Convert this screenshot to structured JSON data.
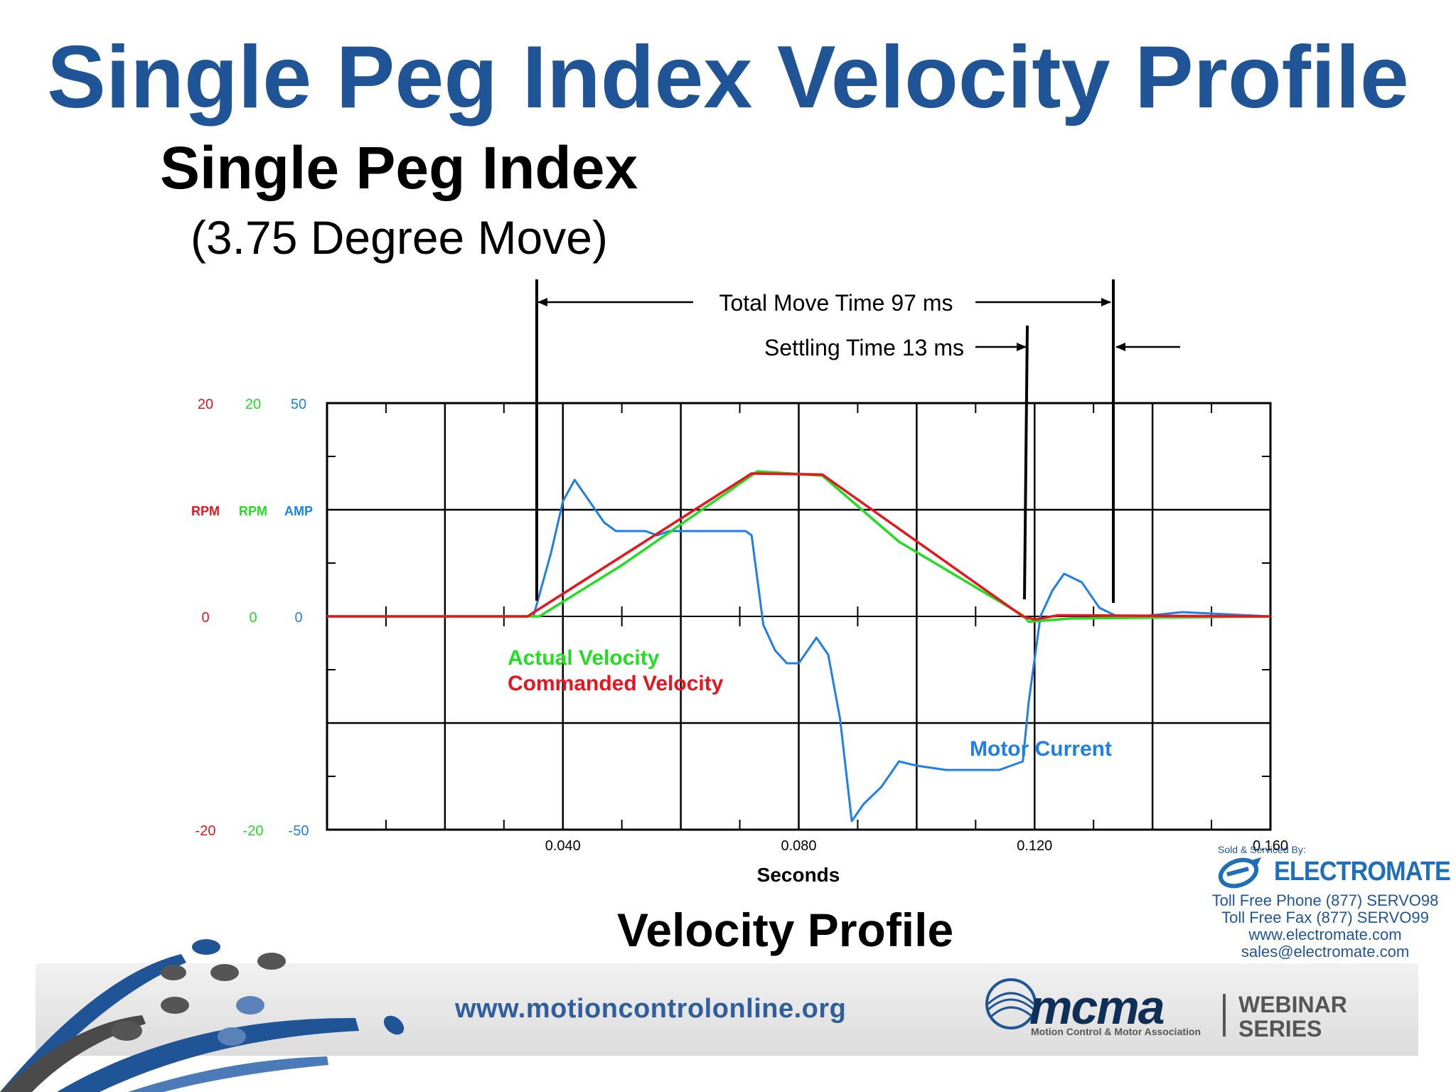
{
  "slide": {
    "title": "Single Peg Index Velocity Profile",
    "subtitle": "Single Peg Index",
    "subtitle_detail": "(3.75 Degree Move)",
    "caption": "Velocity Profile"
  },
  "annotations": {
    "total_move": "Total Move Time 97 ms",
    "settling": "Settling Time 13 ms"
  },
  "electromate": {
    "sold_by": "Sold & Serviced By:",
    "name": "ELECTROMATE",
    "phone": "Toll Free Phone  (877) SERVO98",
    "fax": "Toll Free Fax  (877) SERVO99",
    "web": "www.electromate.com",
    "email": "sales@electromate.com"
  },
  "footer": {
    "url": "www.motioncontrolonline.org",
    "org": "mcma",
    "org_full": "Motion Control & Motor Association",
    "webinar_1": "WEBINAR",
    "webinar_2": "SERIES"
  },
  "colors": {
    "title_blue": "#1f5597",
    "commanded": "#e8141e",
    "actual": "#22dd22",
    "current": "#1e7fe8"
  },
  "chart_data": {
    "type": "line",
    "xlabel": "Seconds",
    "xlim": [
      0.0,
      0.16
    ],
    "x_ticks": [
      "0.040",
      "0.080",
      "0.120",
      "0.160"
    ],
    "axes": [
      {
        "unit": "RPM",
        "color": "#e8141e",
        "ylim": [
          -20,
          20
        ],
        "tick_labels": [
          "20",
          "0",
          "-20"
        ]
      },
      {
        "unit": "RPM",
        "color": "#22dd22",
        "ylim": [
          -20,
          20
        ],
        "tick_labels": [
          "20",
          "0",
          "-20"
        ]
      },
      {
        "unit": "AMP",
        "color": "#1e7fe8",
        "ylim": [
          -50,
          50
        ],
        "tick_labels": [
          "50",
          "0",
          "-50"
        ]
      }
    ],
    "grid": true,
    "series": [
      {
        "name": "Commanded Velocity",
        "color": "#e8141e",
        "axis": 0,
        "x": [
          0.0,
          0.034,
          0.072,
          0.084,
          0.118,
          0.12,
          0.124,
          0.16
        ],
        "y": [
          0,
          0,
          13.4,
          13.3,
          0,
          -0.3,
          0.1,
          0
        ]
      },
      {
        "name": "Actual Velocity",
        "color": "#22dd22",
        "axis": 1,
        "x": [
          0.0,
          0.036,
          0.05,
          0.073,
          0.084,
          0.097,
          0.118,
          0.119,
          0.126,
          0.16
        ],
        "y": [
          0,
          0,
          4.8,
          13.6,
          13.2,
          7.0,
          0.1,
          -0.5,
          -0.2,
          0
        ]
      },
      {
        "name": "Motor Current",
        "color": "#1e7fe8",
        "axis": 2,
        "x": [
          0.0,
          0.035,
          0.038,
          0.04,
          0.042,
          0.044,
          0.047,
          0.049,
          0.051,
          0.054,
          0.056,
          0.058,
          0.061,
          0.064,
          0.068,
          0.071,
          0.072,
          0.074,
          0.076,
          0.078,
          0.08,
          0.083,
          0.085,
          0.087,
          0.089,
          0.091,
          0.094,
          0.097,
          0.1,
          0.105,
          0.11,
          0.114,
          0.118,
          0.119,
          0.121,
          0.123,
          0.125,
          0.128,
          0.131,
          0.134,
          0.138,
          0.145,
          0.16
        ],
        "y": [
          0,
          0,
          15,
          27,
          32,
          28,
          22,
          20,
          20,
          20,
          19,
          20,
          20,
          20,
          20,
          20,
          19,
          -2,
          -8,
          -11,
          -11,
          -5,
          -9,
          -24,
          -48,
          -44,
          -40,
          -34,
          -35,
          -36,
          -36,
          -36,
          -34,
          -20,
          0,
          6,
          10,
          8,
          2,
          0,
          0,
          1,
          0
        ]
      }
    ],
    "legend": [
      "Actual Velocity",
      "Commanded Velocity",
      "Motor Current"
    ]
  }
}
